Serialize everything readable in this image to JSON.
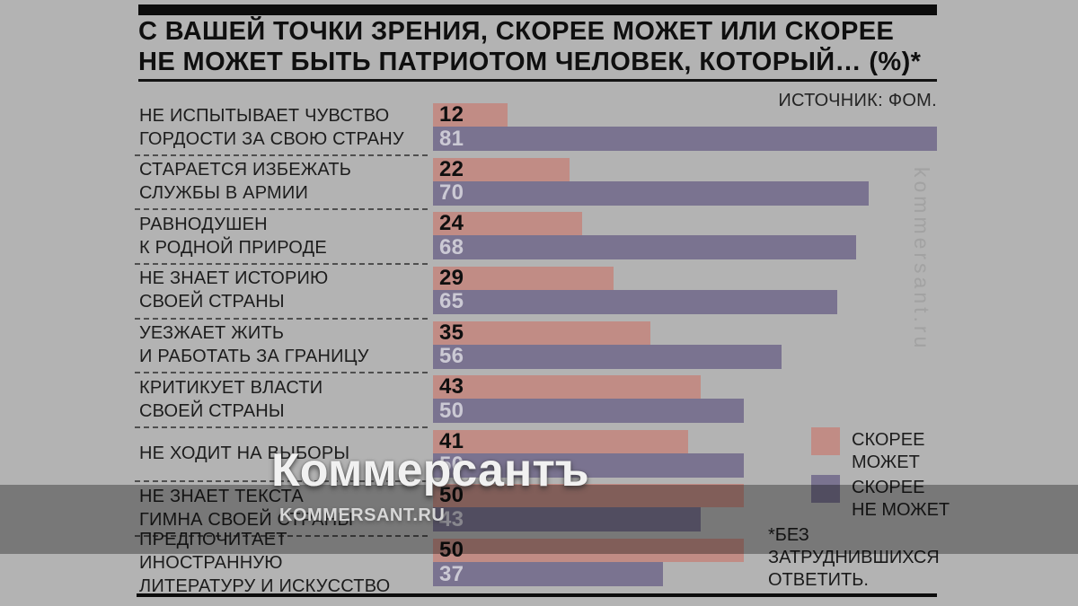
{
  "title": {
    "line1": "С ВАШЕЙ ТОЧКИ ЗРЕНИЯ, СКОРЕЕ МОЖЕТ ИЛИ СКОРЕЕ",
    "line2": "НЕ МОЖЕТ БЫТЬ ПАТРИОТОМ ЧЕЛОВЕК, КОТОРЫЙ… (%)*"
  },
  "source": "ИСТОЧНИК: ФОМ.",
  "legend": [
    {
      "lines": [
        "СКОРЕЕ",
        "МОЖЕТ"
      ]
    },
    {
      "lines": [
        "СКОРЕЕ",
        "НЕ МОЖЕТ"
      ]
    }
  ],
  "footnote": {
    "lines": [
      "*БЕЗ",
      "ЗАТРУДНИВШИХСЯ",
      "ОТВЕТИТЬ."
    ]
  },
  "watermarks": {
    "wordmark": "Коммерсантъ",
    "site": "KOMMERSANT.RU",
    "vertical": "kommersant.ru"
  },
  "colors": {
    "may": "#c18c85",
    "may_not": "#7a7390",
    "background": "#b3b3b3",
    "accent_bar": "#0c0c0c"
  },
  "chart_data": {
    "type": "bar",
    "orientation": "horizontal",
    "title": "С ВАШЕЙ ТОЧКИ ЗРЕНИЯ, СКОРЕЕ МОЖЕТ ИЛИ СКОРЕЕ НЕ МОЖЕТ БЫТЬ ПАТРИОТОМ ЧЕЛОВЕК, КОТОРЫЙ… (%)*",
    "unit": "%",
    "source": "ИСТОЧНИК: ФОМ.",
    "footnote": "*БЕЗ ЗАТРУДНИВШИХСЯ ОТВЕТИТЬ.",
    "xlim": [
      0,
      81
    ],
    "grid": false,
    "legend_position": "right",
    "categories": [
      [
        "НЕ ИСПЫТЫВАЕТ ЧУВСТВО",
        "ГОРДОСТИ ЗА СВОЮ СТРАНУ"
      ],
      [
        "СТАРАЕТСЯ ИЗБЕЖАТЬ",
        "СЛУЖБЫ В АРМИИ"
      ],
      [
        "РАВНОДУШЕН",
        "К РОДНОЙ ПРИРОДЕ"
      ],
      [
        "НЕ ЗНАЕТ ИСТОРИЮ",
        "СВОЕЙ СТРАНЫ"
      ],
      [
        "УЕЗЖАЕТ ЖИТЬ",
        "И РАБОТАТЬ ЗА ГРАНИЦУ"
      ],
      [
        "КРИТИКУЕТ ВЛАСТИ",
        "СВОЕЙ СТРАНЫ"
      ],
      [
        "НЕ ХОДИТ НА ВЫБОРЫ"
      ],
      [
        "НЕ ЗНАЕТ ТЕКСТА",
        "ГИМНА СВОЕЙ СТРАНЫ"
      ],
      [
        "ПРЕДПОЧИТАЕТ ИНОСТРАННУЮ",
        "ЛИТЕРАТУРУ И ИСКУССТВО"
      ]
    ],
    "series": [
      {
        "name": "СКОРЕЕ МОЖЕТ",
        "color": "#c18c85",
        "values": [
          12,
          22,
          24,
          29,
          35,
          43,
          41,
          50,
          50
        ]
      },
      {
        "name": "СКОРЕЕ НЕ МОЖЕТ",
        "color": "#7a7390",
        "values": [
          81,
          70,
          68,
          65,
          56,
          50,
          50,
          43,
          37
        ]
      }
    ]
  }
}
